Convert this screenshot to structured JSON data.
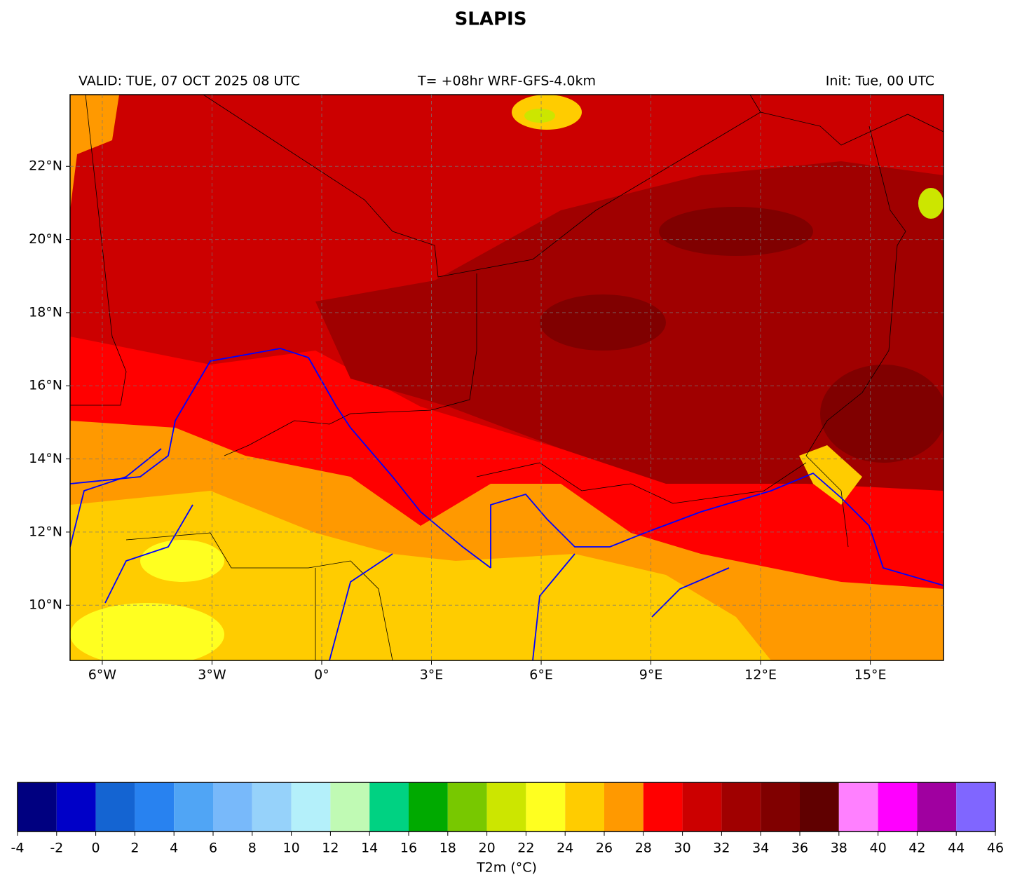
{
  "chart_data": {
    "type": "map",
    "title": "SLAPIS",
    "header_left": "VALID: TUE, 07 OCT 2025 08 UTC",
    "header_center": "T= +08hr WRF-GFS-4.0km",
    "header_right": "Init: Tue, 00 UTC",
    "xlim": [
      -6.88,
      17.0
    ],
    "ylim": [
      8.49,
      23.96
    ],
    "xticks": [
      {
        "value": -6,
        "label": "6°W"
      },
      {
        "value": -3,
        "label": "3°W"
      },
      {
        "value": 0,
        "label": "0°"
      },
      {
        "value": 3,
        "label": "3°E"
      },
      {
        "value": 6,
        "label": "6°E"
      },
      {
        "value": 9,
        "label": "9°E"
      },
      {
        "value": 12,
        "label": "12°E"
      },
      {
        "value": 15,
        "label": "15°E"
      }
    ],
    "yticks": [
      {
        "value": 10,
        "label": "10°N"
      },
      {
        "value": 12,
        "label": "12°N"
      },
      {
        "value": 14,
        "label": "14°N"
      },
      {
        "value": 16,
        "label": "16°N"
      },
      {
        "value": 18,
        "label": "18°N"
      },
      {
        "value": 20,
        "label": "20°N"
      },
      {
        "value": 22,
        "label": "22°N"
      }
    ],
    "grid": true,
    "colorbar": {
      "label": "T2m (°C)",
      "bins": [
        -4,
        -2,
        0,
        2,
        4,
        6,
        8,
        10,
        12,
        14,
        16,
        18,
        20,
        22,
        24,
        26,
        28,
        30,
        32,
        34,
        36,
        38,
        40,
        42,
        44,
        46
      ],
      "colors": [
        "#000080",
        "#0000c8",
        "#1464d2",
        "#2882f0",
        "#50a5f5",
        "#78b9fa",
        "#96d2fa",
        "#b4f0fa",
        "#c0fab4",
        "#00d282",
        "#00aa00",
        "#78c800",
        "#cce600",
        "#ffff20",
        "#ffcc00",
        "#ff9900",
        "#ff0000",
        "#cc0000",
        "#a00000",
        "#800000",
        "#600000",
        "#ff80ff",
        "#ff00ff",
        "#a000a0",
        "#8066ff"
      ]
    }
  }
}
